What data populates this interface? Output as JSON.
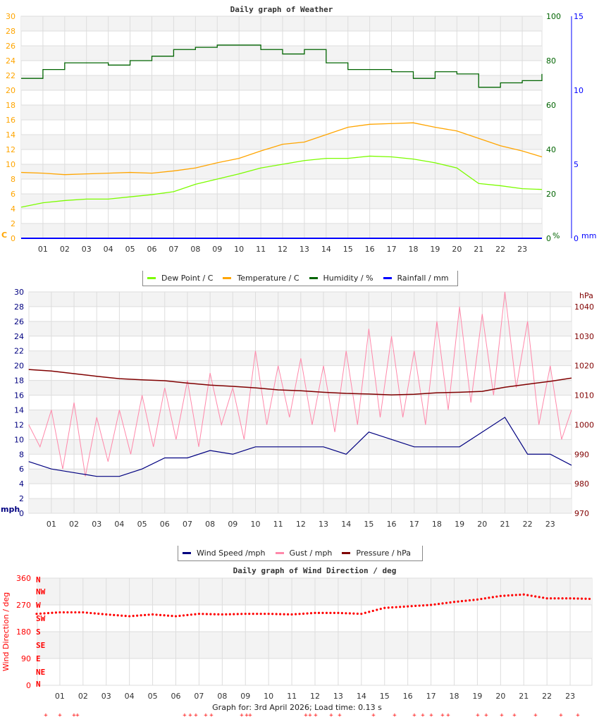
{
  "chart_data": [
    {
      "type": "line",
      "title": "Daily graph of Weather",
      "x_ticks": [
        "01",
        "02",
        "03",
        "04",
        "05",
        "06",
        "07",
        "08",
        "09",
        "10",
        "11",
        "12",
        "13",
        "14",
        "15",
        "16",
        "17",
        "18",
        "19",
        "20",
        "21",
        "22",
        "23"
      ],
      "x_hours": [
        0,
        1,
        2,
        3,
        4,
        5,
        6,
        7,
        8,
        9,
        10,
        11,
        12,
        13,
        14,
        15,
        16,
        17,
        18,
        19,
        20,
        21,
        22,
        23,
        24
      ],
      "axes": {
        "left": {
          "label": "C",
          "range": [
            0,
            30
          ],
          "ticks": [
            0,
            2,
            4,
            6,
            8,
            10,
            12,
            14,
            16,
            18,
            20,
            22,
            24,
            26,
            28,
            30
          ],
          "color": "#FFA500"
        },
        "right1": {
          "label": "%",
          "range": [
            0,
            100
          ],
          "ticks": [
            0,
            20,
            40,
            60,
            80,
            100
          ],
          "color": "#006400"
        },
        "right2": {
          "label": "mm",
          "range": [
            0,
            15
          ],
          "ticks": [
            0,
            5,
            10,
            15
          ],
          "color": "#0000FF"
        }
      },
      "grid": true,
      "legend_position": "bottom",
      "series": [
        {
          "name": "Dew Point / C",
          "axis": "left",
          "color": "#7CFC00",
          "values": [
            4.2,
            4.8,
            5.1,
            5.3,
            5.3,
            5.6,
            5.9,
            6.3,
            7.3,
            8.0,
            8.7,
            9.5,
            10.0,
            10.5,
            10.8,
            10.8,
            11.1,
            11.0,
            10.7,
            10.2,
            9.5,
            7.4,
            7.1,
            6.7,
            6.6
          ]
        },
        {
          "name": "Temperature / C",
          "axis": "left",
          "color": "#FFA500",
          "values": [
            8.9,
            8.8,
            8.6,
            8.7,
            8.8,
            8.9,
            8.8,
            9.1,
            9.5,
            10.2,
            10.8,
            11.8,
            12.7,
            13.0,
            14.0,
            15.0,
            15.4,
            15.5,
            15.6,
            15.0,
            14.5,
            13.5,
            12.5,
            11.8,
            11.0
          ]
        },
        {
          "name": "Humidity / %",
          "axis": "right1",
          "color": "#006400",
          "values": [
            72,
            76,
            79,
            79,
            78,
            80,
            82,
            85,
            86,
            87,
            87,
            85,
            83,
            85,
            79,
            76,
            76,
            75,
            72,
            75,
            74,
            68,
            70,
            71,
            74
          ]
        },
        {
          "name": "Rainfall / mm",
          "axis": "right2",
          "color": "#0000FF",
          "values": [
            0,
            0,
            0,
            0,
            0,
            0,
            0,
            0,
            0,
            0,
            0,
            0,
            0,
            0,
            0,
            0,
            0,
            0,
            0,
            0,
            0,
            0,
            0,
            0,
            0
          ]
        }
      ]
    },
    {
      "type": "line",
      "title": "",
      "x_ticks": [
        "01",
        "02",
        "03",
        "04",
        "05",
        "06",
        "07",
        "08",
        "09",
        "10",
        "11",
        "12",
        "13",
        "14",
        "15",
        "16",
        "17",
        "18",
        "19",
        "20",
        "21",
        "22",
        "23"
      ],
      "x_hours": [
        0,
        1,
        2,
        3,
        4,
        5,
        6,
        7,
        8,
        9,
        10,
        11,
        12,
        13,
        14,
        15,
        16,
        17,
        18,
        19,
        20,
        21,
        22,
        23,
        24
      ],
      "axes": {
        "left": {
          "label": "mph",
          "range": [
            0,
            30
          ],
          "ticks": [
            0,
            2,
            4,
            6,
            8,
            10,
            12,
            14,
            16,
            18,
            20,
            22,
            24,
            26,
            28,
            30
          ],
          "color": "#000080"
        },
        "right1": {
          "label": "hPa",
          "range": [
            970,
            1045
          ],
          "ticks": [
            970,
            980,
            990,
            1000,
            1010,
            1020,
            1030,
            1040
          ],
          "color": "#800000"
        }
      },
      "grid": true,
      "legend_position": "bottom",
      "series": [
        {
          "name": "Wind Speed /mph",
          "axis": "left",
          "color": "#000080",
          "values": [
            7,
            6,
            5.5,
            5,
            5,
            6,
            7.5,
            7.5,
            8.5,
            8,
            9,
            9,
            9,
            9,
            8,
            11,
            10,
            9,
            9,
            9,
            11,
            13,
            8,
            8,
            6.5
          ]
        },
        {
          "name": "Gust / mph",
          "axis": "left",
          "color": "#FF88AA",
          "half_hour_values": [
            12,
            9,
            14,
            6,
            15,
            5,
            13,
            7,
            14,
            8,
            16,
            9,
            17,
            10,
            18,
            9,
            19,
            12,
            17,
            10,
            22,
            12,
            20,
            13,
            21,
            12,
            20,
            11,
            22,
            12,
            25,
            13,
            24,
            13,
            22,
            12,
            26,
            14,
            28,
            15,
            27,
            16,
            30,
            17,
            26,
            12,
            20,
            10,
            14
          ]
        },
        {
          "name": "Pressure / hPa",
          "axis": "right1",
          "color": "#800000",
          "values": [
            1018.7,
            1018.2,
            1017.3,
            1016.4,
            1015.6,
            1015.2,
            1014.9,
            1014.1,
            1013.4,
            1013.0,
            1012.5,
            1011.8,
            1011.5,
            1011.0,
            1010.6,
            1010.4,
            1010.1,
            1010.3,
            1010.8,
            1011.0,
            1011.3,
            1012.7,
            1013.7,
            1014.7,
            1015.8
          ]
        }
      ]
    },
    {
      "type": "scatter",
      "title": "Daily graph of Wind Direction / deg",
      "ylabel": "Wind Direction / deg",
      "x_ticks": [
        "01",
        "02",
        "03",
        "04",
        "05",
        "06",
        "07",
        "08",
        "09",
        "10",
        "11",
        "12",
        "13",
        "14",
        "15",
        "16",
        "17",
        "18",
        "19",
        "20",
        "21",
        "22",
        "23"
      ],
      "x_hours": [
        0,
        1,
        2,
        3,
        4,
        5,
        6,
        7,
        8,
        9,
        10,
        11,
        12,
        13,
        14,
        15,
        16,
        17,
        18,
        19,
        20,
        21,
        22,
        23,
        24
      ],
      "axes": {
        "left": {
          "range": [
            0,
            360
          ],
          "ticks": [
            0,
            90,
            180,
            270,
            360
          ],
          "color": "#FF0000"
        },
        "compass": [
          "N",
          "NE",
          "E",
          "SE",
          "S",
          "SW",
          "W",
          "NW",
          "N"
        ]
      },
      "grid": true,
      "series": [
        {
          "color": "#FF0000",
          "values": [
            240,
            245,
            245,
            238,
            232,
            238,
            232,
            240,
            238,
            240,
            240,
            238,
            243,
            243,
            240,
            260,
            265,
            270,
            280,
            288,
            300,
            305,
            292,
            292,
            290
          ]
        }
      ]
    }
  ],
  "footer": {
    "text": "Graph for: 3rd April 2026; Load time: 0.13 s"
  }
}
